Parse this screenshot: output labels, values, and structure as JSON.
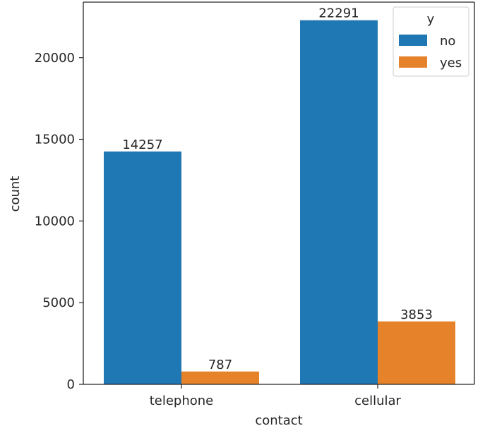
{
  "chart_data": {
    "type": "bar",
    "title": "",
    "xlabel": "contact",
    "ylabel": "count",
    "categories": [
      "telephone",
      "cellular"
    ],
    "series": [
      {
        "name": "no",
        "values": [
          14257,
          22291
        ],
        "color": "#1f77b4"
      },
      {
        "name": "yes",
        "values": [
          787,
          3853
        ],
        "color": "#e6822a"
      }
    ],
    "ylim": [
      0,
      23400
    ],
    "yticks": [
      0,
      5000,
      10000,
      15000,
      20000
    ],
    "ytick_labels": [
      "0",
      "5000",
      "10000",
      "15000",
      "20000"
    ],
    "data_labels": [
      [
        "14257",
        "22291"
      ],
      [
        "787",
        "3853"
      ]
    ],
    "legend": {
      "title": "y",
      "position": "top-right",
      "entries": [
        "no",
        "yes"
      ]
    },
    "grid": false
  }
}
